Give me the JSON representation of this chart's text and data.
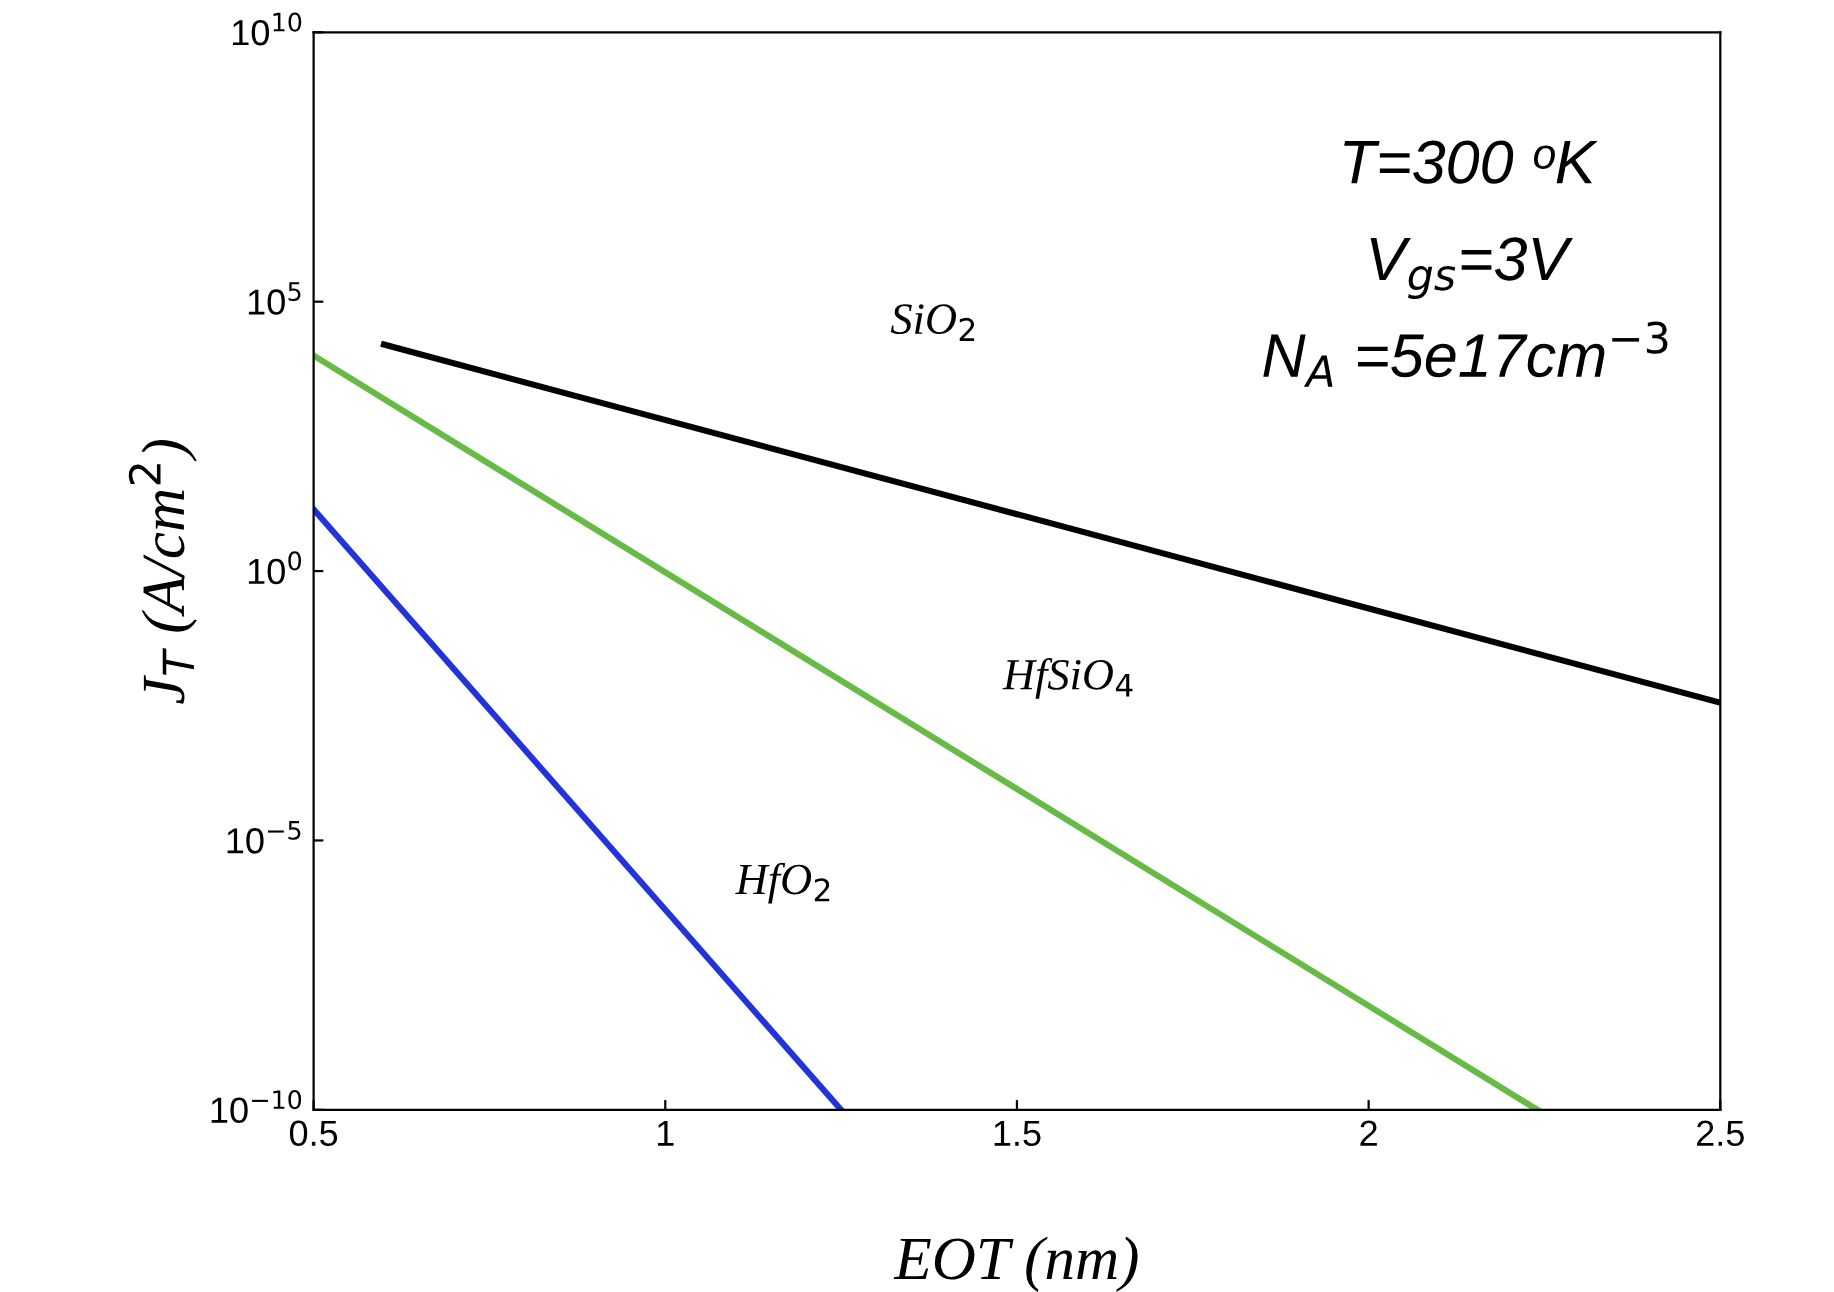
{
  "chart_data": {
    "type": "line",
    "xlabel": "EOT (nm)",
    "ylabel": "J$_{T}$ (A/cm$^{2}$)",
    "log": "y",
    "xlim": [
      0.5,
      2.5
    ],
    "xticks": [
      0.5,
      1,
      1.5,
      2,
      2.5
    ],
    "ylim": [
      1e-10,
      10000000000.0
    ],
    "yticks": [
      {
        "value": 1e-10,
        "label": "10$^{−10}$"
      },
      {
        "value": 1e-05,
        "label": "10$^{−5}$"
      },
      {
        "value": 1,
        "label": "10$^{0}$"
      },
      {
        "value": 100000,
        "label": "10$^{5}$"
      },
      {
        "value": 10000000000.0,
        "label": "10$^{10}$"
      }
    ],
    "series": [
      {
        "color": "#000000",
        "x": [
          0.6,
          2.5
        ],
        "values": [
          16000,
          0.0036
        ]
      },
      {
        "color": "#66bb44",
        "x": [
          0.5,
          2.24
        ],
        "values": [
          10000,
          1e-10
        ]
      },
      {
        "color": "#2233dd",
        "x": [
          0.5,
          1.25
        ],
        "values": [
          14,
          1e-10
        ]
      }
    ],
    "annotations": [
      "SiO$_{2}$",
      "HfSiO$_{4}$",
      "HfO$_{2}$",
      "T=300 ᵒK",
      "V$_{gs}$=3V",
      "N$_{A}$ =5e17cm$^{−3}$"
    ],
    "grid": false,
    "legend": false,
    "marker": "none",
    "line_style": "solid"
  }
}
